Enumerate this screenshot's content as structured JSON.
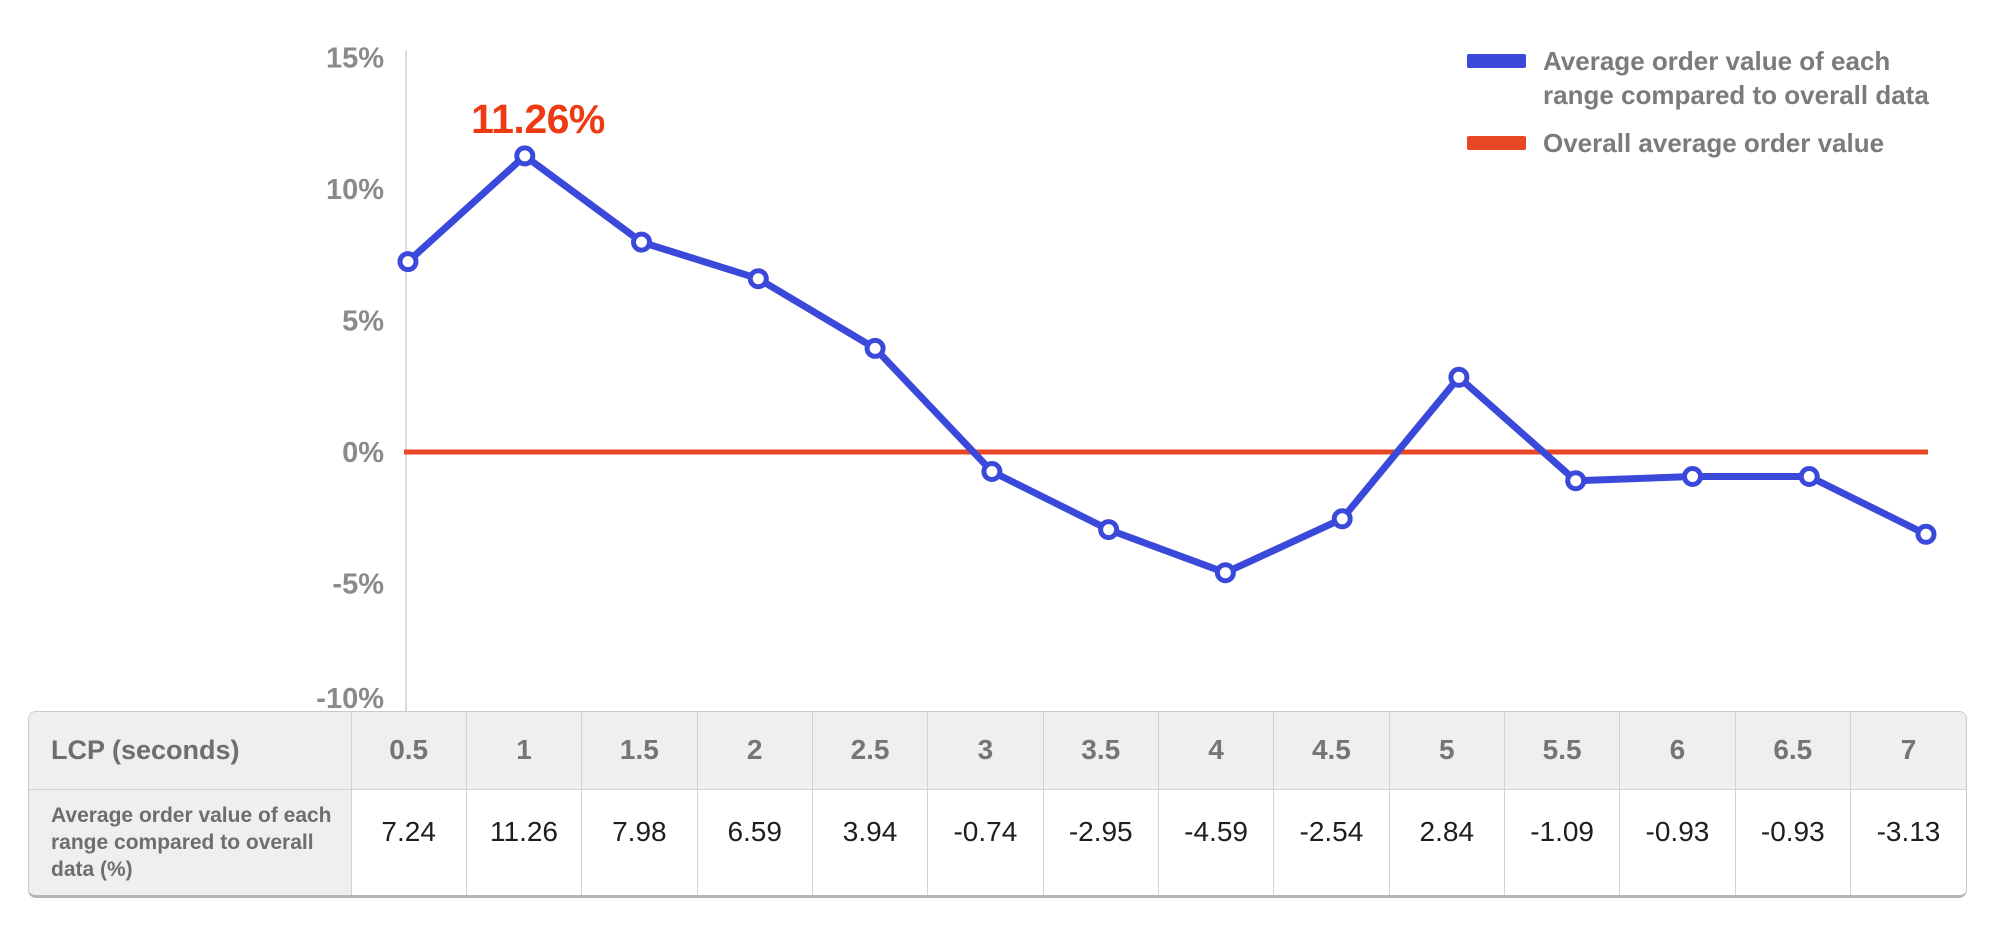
{
  "chart": {
    "annotation_text": "11.26%"
  },
  "chart_data": {
    "type": "line",
    "x_label": "LCP (seconds)",
    "x": [
      0.5,
      1,
      1.5,
      2,
      2.5,
      3,
      3.5,
      4,
      4.5,
      5,
      5.5,
      6,
      6.5,
      7
    ],
    "series": [
      {
        "name": "Average order value of each range compared to overall data",
        "values": [
          7.24,
          11.26,
          7.98,
          6.59,
          3.94,
          -0.74,
          -2.95,
          -4.59,
          -2.54,
          2.84,
          -1.09,
          -0.93,
          -0.93,
          -3.13
        ],
        "color": "#3B49DB",
        "style": "line-with-open-circle-markers"
      },
      {
        "name": "Overall average order value",
        "values": [
          0,
          0,
          0,
          0,
          0,
          0,
          0,
          0,
          0,
          0,
          0,
          0,
          0,
          0
        ],
        "color": "#E84726",
        "style": "horizontal-baseline"
      }
    ],
    "annotation": {
      "text": "11.26%",
      "point_index": 1,
      "value": 11.26,
      "color": "#EE3A12"
    },
    "yticks": [
      {
        "value": 15,
        "label": "15%"
      },
      {
        "value": 10,
        "label": "10%"
      },
      {
        "value": 5,
        "label": "5%"
      },
      {
        "value": 0,
        "label": "0%"
      },
      {
        "value": -5,
        "label": "-5%"
      },
      {
        "value": -10,
        "label": "-10%"
      }
    ],
    "ylim": [
      -10,
      15
    ],
    "grid": false,
    "legend_position": "top-right"
  },
  "legend": {
    "items": [
      {
        "label": "Average order value of each range compared to overall data",
        "color": "#3B49DB"
      },
      {
        "label": "Overall average order value",
        "color": "#E84726"
      }
    ]
  },
  "table": {
    "row1_header": "LCP (seconds)",
    "row2_header": "Average order value of each range compared to overall data (%)",
    "lcp_values": [
      "0.5",
      "1",
      "1.5",
      "2",
      "2.5",
      "3",
      "3.5",
      "4",
      "4.5",
      "5",
      "5.5",
      "6",
      "6.5",
      "7"
    ],
    "aov_values": [
      "7.24",
      "11.26",
      "7.98",
      "6.59",
      "3.94",
      "-0.74",
      "-2.95",
      "-4.59",
      "-2.54",
      "2.84",
      "-1.09",
      "-0.93",
      "-0.93",
      "-3.13"
    ]
  },
  "colors": {
    "blue": "#3B49DB",
    "red": "#E84726",
    "annotation_red": "#EE3A12",
    "axis_gray": "#DBDBDB",
    "tick_text": "#8A8A8A",
    "legend_text": "#7B7B7B",
    "table_header_bg": "#EFEFEF",
    "table_header_text": "#6E6E6E",
    "table_value_text": "#1E1E1E",
    "table_border": "#D3D3D3"
  }
}
